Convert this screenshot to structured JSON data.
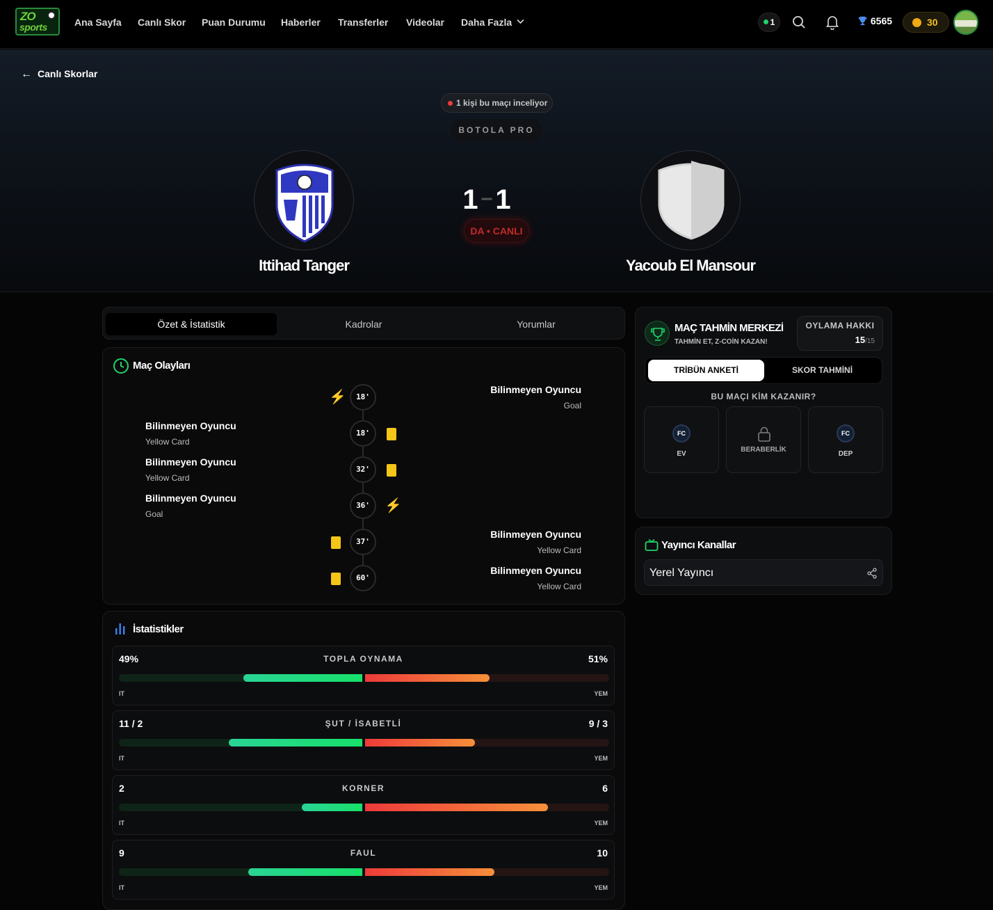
{
  "nav": {
    "logo_top": "ZO",
    "logo_bottom": "sports",
    "menu": [
      "Ana Sayfa",
      "Canlı Skor",
      "Puan Durumu",
      "Haberler",
      "Transferler",
      "Videolar",
      "Daha Fazla"
    ],
    "online_count": "1",
    "trophy_points": "6565",
    "coins": "30"
  },
  "hero": {
    "back_label": "Canlı Skorlar",
    "watching": "1 kişi bu maçı inceliyor",
    "league": "BOTOLA PRO",
    "home_team": "Ittihad Tanger",
    "away_team": "Yacoub El Mansour",
    "home_score": "1",
    "away_score": "1",
    "status": "DA • CANLI"
  },
  "tabs": [
    "Özet & İstatistik",
    "Kadrolar",
    "Yorumlar"
  ],
  "events": {
    "title": "Maç Olayları",
    "items": [
      {
        "minute": "18'",
        "side": "away",
        "player": "Bilinmeyen Oyuncu",
        "type": "Goal",
        "icon": "bolt-icon"
      },
      {
        "minute": "18'",
        "side": "home",
        "player": "Bilinmeyen Oyuncu",
        "type": "Yellow Card",
        "icon": "yellow-card-icon"
      },
      {
        "minute": "32'",
        "side": "home",
        "player": "Bilinmeyen Oyuncu",
        "type": "Yellow Card",
        "icon": "yellow-card-icon"
      },
      {
        "minute": "36'",
        "side": "home",
        "player": "Bilinmeyen Oyuncu",
        "type": "Goal",
        "icon": "bolt-icon"
      },
      {
        "minute": "37'",
        "side": "away",
        "player": "Bilinmeyen Oyuncu",
        "type": "Yellow Card",
        "icon": "yellow-card-icon"
      },
      {
        "minute": "60'",
        "side": "away",
        "player": "Bilinmeyen Oyuncu",
        "type": "Yellow Card",
        "icon": "yellow-card-icon"
      }
    ]
  },
  "stats": {
    "title": "İstatistikler",
    "home_abbr": "IT",
    "away_abbr": "YEM",
    "items": [
      {
        "label": "TOPLA OYNAMA",
        "home": "49%",
        "away": "51%",
        "home_share": 0.49,
        "away_share": 0.51
      },
      {
        "label": "ŞUT / İSABETLİ",
        "home": "11 / 2",
        "away": "9 / 3",
        "home_share": 0.55,
        "away_share": 0.45
      },
      {
        "label": "KORNER",
        "home": "2",
        "away": "6",
        "home_share": 0.25,
        "away_share": 0.75
      },
      {
        "label": "FAUL",
        "home": "9",
        "away": "10",
        "home_share": 0.47,
        "away_share": 0.53
      }
    ]
  },
  "prediction": {
    "title": "MAÇ TAHMİN MERKEZİ",
    "subtitle": "TAHMİN ET, Z-COİN KAZAN!",
    "vote_label": "OYLAMA HAKKI",
    "vote_current": "15",
    "vote_total": "/15",
    "tab_active": "TRİBÜN ANKETİ",
    "tab_other": "SKOR TAHMİNİ",
    "question": "BU MAÇI KİM KAZANIR?",
    "options": [
      {
        "badge": "FC",
        "label": "EV"
      },
      {
        "badge": "",
        "label": "BERABERLİK"
      },
      {
        "badge": "FC",
        "label": "DEP"
      }
    ]
  },
  "broadcast": {
    "title": "Yayıncı Kanallar",
    "channel": "Yerel Yayıncı"
  },
  "colors": {
    "accent_green": "#22d36a",
    "accent_red": "#ef3a3a",
    "yellow": "#f5c518",
    "gold": "#f4c024"
  }
}
